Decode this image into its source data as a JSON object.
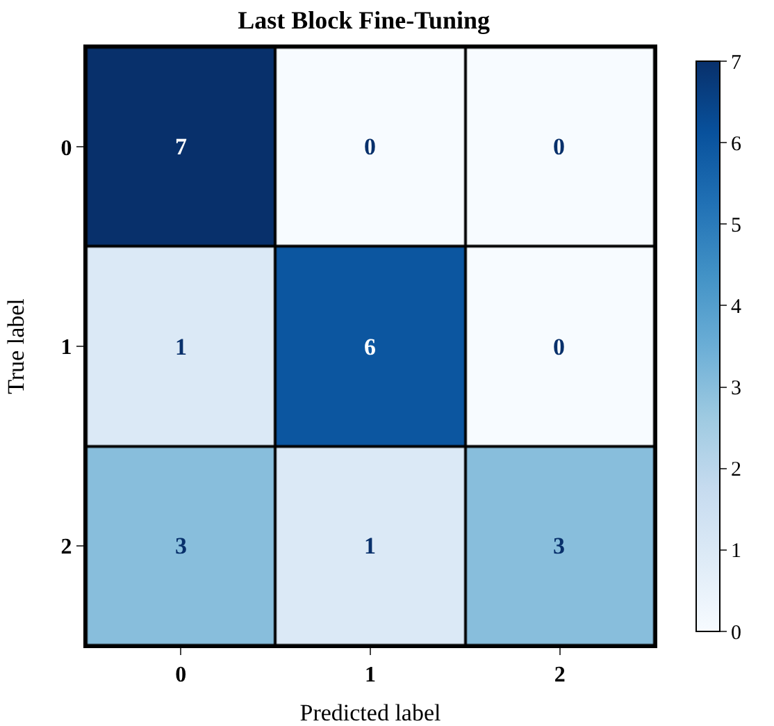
{
  "chart_data": {
    "type": "heatmap",
    "title": "Last Block Fine-Tuning",
    "xlabel": "Predicted label",
    "ylabel": "True label",
    "categories": [
      "0",
      "1",
      "2"
    ],
    "y_categories": [
      "0",
      "1",
      "2"
    ],
    "cells": [
      [
        7,
        0,
        0
      ],
      [
        1,
        6,
        0
      ],
      [
        3,
        1,
        3
      ]
    ],
    "clim": [
      0,
      7
    ],
    "cticks": [
      0,
      1,
      2,
      3,
      4,
      5,
      6,
      7
    ],
    "data_labels": true
  }
}
